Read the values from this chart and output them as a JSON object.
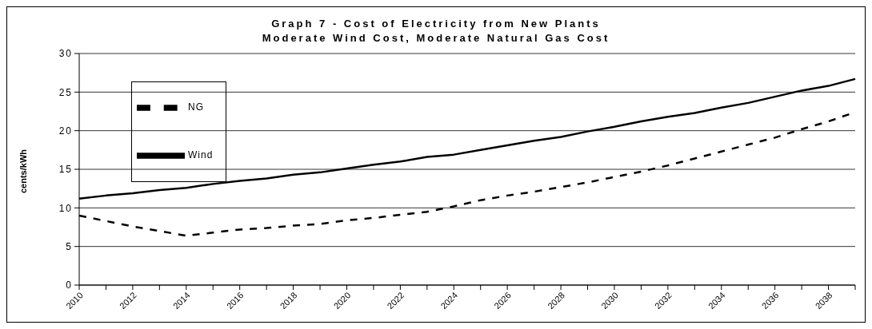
{
  "chart_data": {
    "type": "line",
    "title": "Graph 7 - Cost of Electricity from New Plants",
    "subtitle": "Moderate Wind Cost, Moderate Natural Gas Cost",
    "ylabel": "cents/kWh",
    "categories": [
      "2010",
      null,
      "2012",
      null,
      "2014",
      null,
      "2016",
      null,
      "2018",
      null,
      "2020",
      null,
      "2022",
      null,
      "2024",
      null,
      "2026",
      null,
      "2028",
      null,
      "2030",
      null,
      "2032",
      null,
      "2034",
      null,
      "2036",
      null,
      "2038",
      null
    ],
    "series": [
      {
        "name": "Wind",
        "color": "#000000",
        "line_style": "solid",
        "values": [
          11.2,
          11.6,
          11.9,
          12.3,
          12.6,
          13.1,
          13.5,
          13.8,
          14.3,
          14.6,
          15.1,
          15.6,
          16.0,
          16.6,
          16.9,
          17.5,
          18.1,
          18.7,
          19.2,
          19.9,
          20.5,
          21.2,
          21.8,
          22.3,
          23.0,
          23.6,
          24.4,
          25.2,
          25.8,
          26.7
        ]
      },
      {
        "name": "NG",
        "color": "#000000",
        "line_style": "dashed",
        "values": [
          9.0,
          8.3,
          7.6,
          7.0,
          6.4,
          6.8,
          7.2,
          7.4,
          7.7,
          7.9,
          8.4,
          8.7,
          9.1,
          9.5,
          10.2,
          11.0,
          11.6,
          12.1,
          12.7,
          13.3,
          14.0,
          14.7,
          15.5,
          16.4,
          17.3,
          18.2,
          19.1,
          20.2,
          21.2,
          22.4
        ]
      }
    ],
    "ylim": [
      0,
      30
    ],
    "yticks": [
      0,
      5,
      10,
      15,
      20,
      25,
      30
    ],
    "grid": "y",
    "legend": "top left",
    "marker": "none"
  }
}
